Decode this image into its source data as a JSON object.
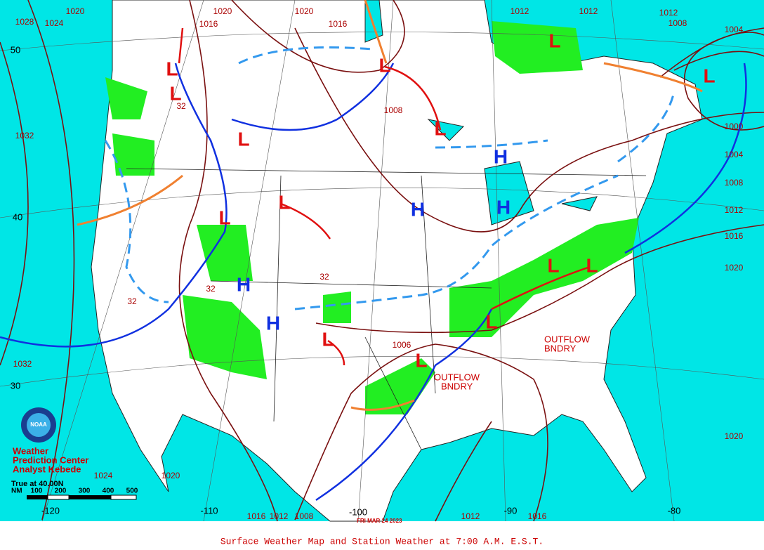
{
  "caption": "Surface Weather Map and Station Weather at 7:00 A.M. E.S.T.",
  "agency": {
    "line1": "Weather",
    "line2": "Prediction Center",
    "analyst": "Analyst Kebede",
    "logo": "NOAA"
  },
  "scale": {
    "title": "True at 40.00N",
    "unit": "NM",
    "marks": [
      100,
      200,
      300,
      400,
      500
    ]
  },
  "date": "FRI MAR 24 2023",
  "latitudes": [
    50,
    40,
    30
  ],
  "longitudes": [
    -120,
    -110,
    -100,
    -90,
    -80
  ],
  "highs": [
    "H",
    "H",
    "H",
    "H",
    "H"
  ],
  "lows": [
    "L",
    "L",
    "L",
    "L",
    "L",
    "L",
    "L",
    "L",
    "L",
    "L",
    "L",
    "L",
    "L",
    "L"
  ],
  "isobar_labels": [
    "1020",
    "1028",
    "1024",
    "1032",
    "1032",
    "1016",
    "1020",
    "1020",
    "1016",
    "1012",
    "1012",
    "1012",
    "1008",
    "1004",
    "1000",
    "1004",
    "1008",
    "1012",
    "1016",
    "1020",
    "1020",
    "1008",
    "1016",
    "1012",
    "1008",
    "1012",
    "1016",
    "1024",
    "1020",
    "1006",
    "32",
    "32",
    "32",
    "32"
  ],
  "boundaries": [
    {
      "line1": "OUTFLOW",
      "line2": "BNDRY"
    },
    {
      "line1": "OUTFLOW",
      "line2": "BNDRY"
    }
  ]
}
